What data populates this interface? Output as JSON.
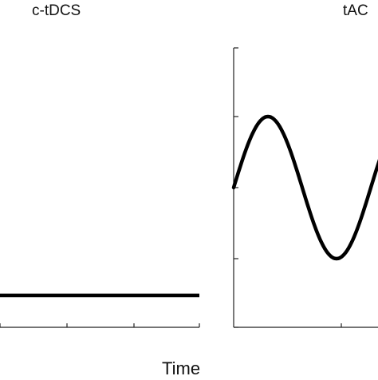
{
  "chart_data": [
    {
      "type": "line",
      "title": "c-tDCS",
      "xlabel": "",
      "ylabel": "",
      "grid": false,
      "series": [
        {
          "x": [
            0,
            1
          ],
          "y": [
            -1,
            -1
          ]
        }
      ],
      "ylim": [
        -1.4,
        2.1
      ]
    },
    {
      "type": "line",
      "title": "tAC",
      "xlabel": "",
      "ylabel": "",
      "grid": false,
      "series": [
        {
          "function": "sine",
          "amplitude": 1,
          "phase_start": 0,
          "cycles_shown": 1.25
        }
      ],
      "ylim": [
        -2.1,
        2.1
      ]
    }
  ],
  "shared": {
    "xlabel": "Time"
  },
  "colors": {
    "line": "#000000",
    "axis": "#222222",
    "text": "#111111"
  }
}
